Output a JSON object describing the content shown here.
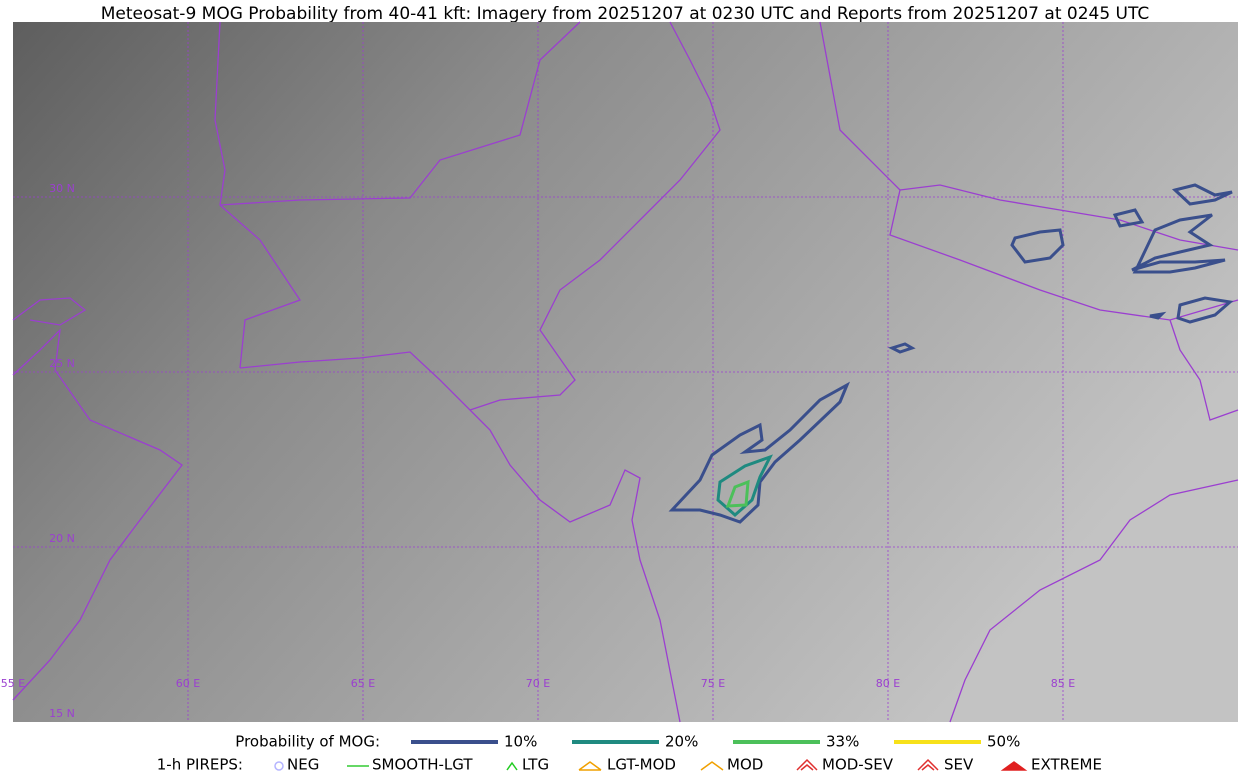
{
  "title": "Meteosat-9 MOG Probability from 40-41 kft: Imagery from 20251207 at 0230 UTC and Reports from 20251207 at 0245 UTC",
  "map": {
    "lon_labels": [
      "55 E",
      "60 E",
      "65 E",
      "70 E",
      "75 E",
      "80 E",
      "85 E"
    ],
    "lat_labels": [
      "30 N",
      "25 N",
      "20 N",
      "15 N"
    ]
  },
  "legend": {
    "probability": {
      "label": "Probability of MOG:",
      "items": [
        {
          "label": "10%",
          "color": "#3a4f8c"
        },
        {
          "label": "20%",
          "color": "#1f8a80"
        },
        {
          "label": "33%",
          "color": "#4cc05a"
        },
        {
          "label": "50%",
          "color": "#f7e11a"
        }
      ]
    },
    "pireps": {
      "label": "1-h PIREPS:",
      "items": [
        {
          "label": "NEG",
          "color": "#b4b4ff"
        },
        {
          "label": "SMOOTH-LGT",
          "color": "#33cc33"
        },
        {
          "label": "LTG",
          "color": "#22cc22"
        },
        {
          "label": "LGT-MOD",
          "color": "#f0a000"
        },
        {
          "label": "MOD",
          "color": "#f0a000"
        },
        {
          "label": "MOD-SEV",
          "color": "#e03030"
        },
        {
          "label": "SEV",
          "color": "#e03030"
        },
        {
          "label": "EXTREME",
          "color": "#e02020"
        }
      ]
    }
  }
}
